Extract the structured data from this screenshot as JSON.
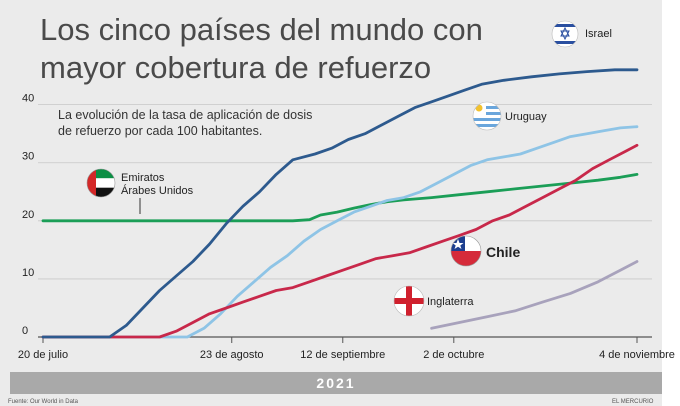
{
  "chart_data": {
    "type": "line",
    "title_lines": [
      "Los cinco países del mundo con",
      "mayor cobertura de refuerzo"
    ],
    "subtitle_lines": [
      "La evolución de la tasa de aplicación de dosis",
      "de refuerzo por cada 100 habitantes."
    ],
    "x_tick_labels": [
      "20 de julio",
      "23 de agosto",
      "12 de septiembre",
      "2 de octubre",
      "4 de noviembre"
    ],
    "x_tick_days": [
      0,
      34,
      54,
      74,
      107
    ],
    "x_range_days": [
      0,
      107
    ],
    "y_ticks": [
      "0",
      "10",
      "20",
      "30",
      "40"
    ],
    "ylim": [
      0,
      47
    ],
    "year_label": "2021",
    "footer_left": "Fuente: Our World in Data",
    "footer_right": "EL MERCURIO",
    "series": [
      {
        "name": "Israel",
        "color": "#2d5a8e",
        "label_weight": "normal",
        "flag": "israel-flag",
        "points": [
          [
            0,
            0
          ],
          [
            12,
            0
          ],
          [
            15,
            2
          ],
          [
            18,
            5
          ],
          [
            21,
            8
          ],
          [
            24,
            10.5
          ],
          [
            27,
            13
          ],
          [
            30,
            16
          ],
          [
            33,
            19.5
          ],
          [
            36,
            22.5
          ],
          [
            39,
            25
          ],
          [
            42,
            28
          ],
          [
            45,
            30.5
          ],
          [
            49,
            31.5
          ],
          [
            52,
            32.5
          ],
          [
            55,
            34
          ],
          [
            58,
            35
          ],
          [
            61,
            36.5
          ],
          [
            64,
            38
          ],
          [
            67,
            39.5
          ],
          [
            70,
            40.5
          ],
          [
            73,
            41.5
          ],
          [
            76,
            42.5
          ],
          [
            79,
            43.5
          ],
          [
            83,
            44.2
          ],
          [
            88,
            44.8
          ],
          [
            93,
            45.3
          ],
          [
            98,
            45.7
          ],
          [
            103,
            46
          ],
          [
            107,
            46
          ]
        ]
      },
      {
        "name": "Uruguay",
        "color": "#8ec4e6",
        "label_weight": "normal",
        "flag": "uruguay-flag",
        "points": [
          [
            0,
            0
          ],
          [
            26,
            0
          ],
          [
            29,
            1.5
          ],
          [
            32,
            4
          ],
          [
            35,
            7
          ],
          [
            38,
            9.5
          ],
          [
            41,
            12
          ],
          [
            44,
            14
          ],
          [
            47,
            16.5
          ],
          [
            50,
            18.5
          ],
          [
            53,
            20
          ],
          [
            56,
            21.5
          ],
          [
            59,
            22.5
          ],
          [
            62,
            23.5
          ],
          [
            65,
            24
          ],
          [
            68,
            25
          ],
          [
            71,
            26.5
          ],
          [
            74,
            28
          ],
          [
            77,
            29.5
          ],
          [
            80,
            30.5
          ],
          [
            83,
            31
          ],
          [
            86,
            31.5
          ],
          [
            89,
            32.5
          ],
          [
            92,
            33.5
          ],
          [
            95,
            34.5
          ],
          [
            98,
            35
          ],
          [
            101,
            35.5
          ],
          [
            104,
            36
          ],
          [
            107,
            36.2
          ]
        ]
      },
      {
        "name": "Emiratos\nÁrabes Unidos",
        "color": "#1b9e57",
        "label_weight": "normal",
        "flag": "uae-flag",
        "points": [
          [
            0,
            20
          ],
          [
            45,
            20
          ],
          [
            48,
            20.2
          ],
          [
            50,
            21
          ],
          [
            53,
            21.5
          ],
          [
            56,
            22.2
          ],
          [
            59,
            22.8
          ],
          [
            62,
            23.3
          ],
          [
            65,
            23.6
          ],
          [
            70,
            24
          ],
          [
            75,
            24.5
          ],
          [
            80,
            25
          ],
          [
            85,
            25.5
          ],
          [
            90,
            26
          ],
          [
            95,
            26.5
          ],
          [
            100,
            27
          ],
          [
            104,
            27.5
          ],
          [
            107,
            28
          ]
        ]
      },
      {
        "name": "Chile",
        "color": "#c8284a",
        "label_weight": "bold",
        "flag": "chile-flag",
        "points": [
          [
            0,
            0
          ],
          [
            21,
            0
          ],
          [
            24,
            1
          ],
          [
            27,
            2.5
          ],
          [
            30,
            4
          ],
          [
            33,
            5
          ],
          [
            36,
            6
          ],
          [
            39,
            7
          ],
          [
            42,
            8
          ],
          [
            45,
            8.5
          ],
          [
            48,
            9.5
          ],
          [
            51,
            10.5
          ],
          [
            54,
            11.5
          ],
          [
            57,
            12.5
          ],
          [
            60,
            13.5
          ],
          [
            63,
            14
          ],
          [
            66,
            14.5
          ],
          [
            69,
            15.5
          ],
          [
            72,
            16.5
          ],
          [
            75,
            17.5
          ],
          [
            78,
            18.5
          ],
          [
            81,
            20
          ],
          [
            84,
            21
          ],
          [
            87,
            22.5
          ],
          [
            90,
            24
          ],
          [
            93,
            25.5
          ],
          [
            96,
            27
          ],
          [
            99,
            29
          ],
          [
            102,
            30.5
          ],
          [
            105,
            32
          ],
          [
            107,
            33
          ]
        ]
      },
      {
        "name": "Inglaterra",
        "color": "#a8a2bc",
        "label_weight": "normal",
        "flag": "england-flag",
        "points": [
          [
            70,
            1.5
          ],
          [
            75,
            2.5
          ],
          [
            80,
            3.5
          ],
          [
            85,
            4.5
          ],
          [
            90,
            6
          ],
          [
            95,
            7.5
          ],
          [
            100,
            9.5
          ],
          [
            104,
            11.5
          ],
          [
            107,
            13
          ]
        ]
      }
    ]
  }
}
